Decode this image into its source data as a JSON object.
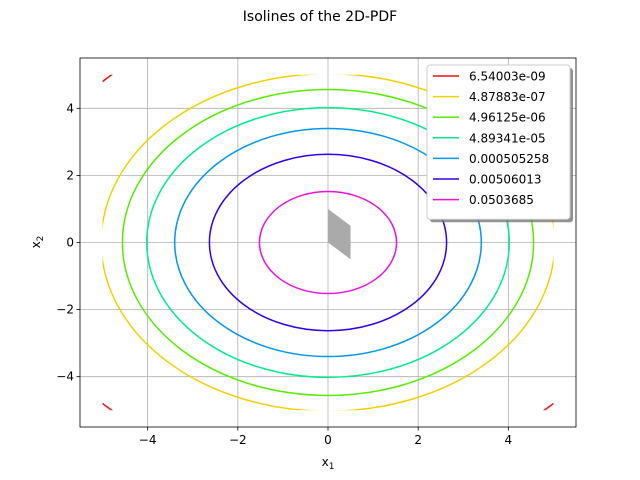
{
  "chart_data": {
    "type": "line",
    "title": "Isolines of the 2D-PDF",
    "xlabel_base": "x",
    "xlabel_sub": "1",
    "ylabel_base": "x",
    "ylabel_sub": "2",
    "xlim": [
      -5.5,
      5.5
    ],
    "ylim": [
      -5.5,
      5.5
    ],
    "xticks": [
      -4,
      -2,
      0,
      2,
      4
    ],
    "yticks": [
      -4,
      -2,
      0,
      2,
      4
    ],
    "xtick_labels": [
      "−4",
      "−2",
      "0",
      "2",
      "4"
    ],
    "ytick_labels": [
      "−4",
      "−2",
      "0",
      "2",
      "4"
    ],
    "grid": true,
    "legend_position": "top-right",
    "clip_box": [
      -5,
      5
    ],
    "series": [
      {
        "name": "6.54003e-09",
        "level": 6.54003e-09,
        "radius": 6.93,
        "color": "#ee1111"
      },
      {
        "name": "4.87883e-07",
        "level": 4.87883e-07,
        "radius": 5.03,
        "color": "#f5d000"
      },
      {
        "name": "4.96125e-06",
        "level": 4.96125e-06,
        "radius": 4.56,
        "color": "#55ee00"
      },
      {
        "name": "4.89341e-05",
        "level": 4.89341e-05,
        "radius": 4.02,
        "color": "#00ee88"
      },
      {
        "name": "0.000505258",
        "level": 0.000505258,
        "radius": 3.4,
        "color": "#0099ee"
      },
      {
        "name": "0.00506013",
        "level": 0.00506013,
        "radius": 2.63,
        "color": "#3300ee"
      },
      {
        "name": "0.0503685",
        "level": 0.0503685,
        "radius": 1.52,
        "color": "#ee11dd"
      }
    ],
    "marker_shape": {
      "color": "#aaaaaa",
      "points": [
        [
          0,
          1
        ],
        [
          0.5,
          0.5
        ],
        [
          0.5,
          -0.5
        ],
        [
          0,
          0
        ]
      ]
    }
  }
}
